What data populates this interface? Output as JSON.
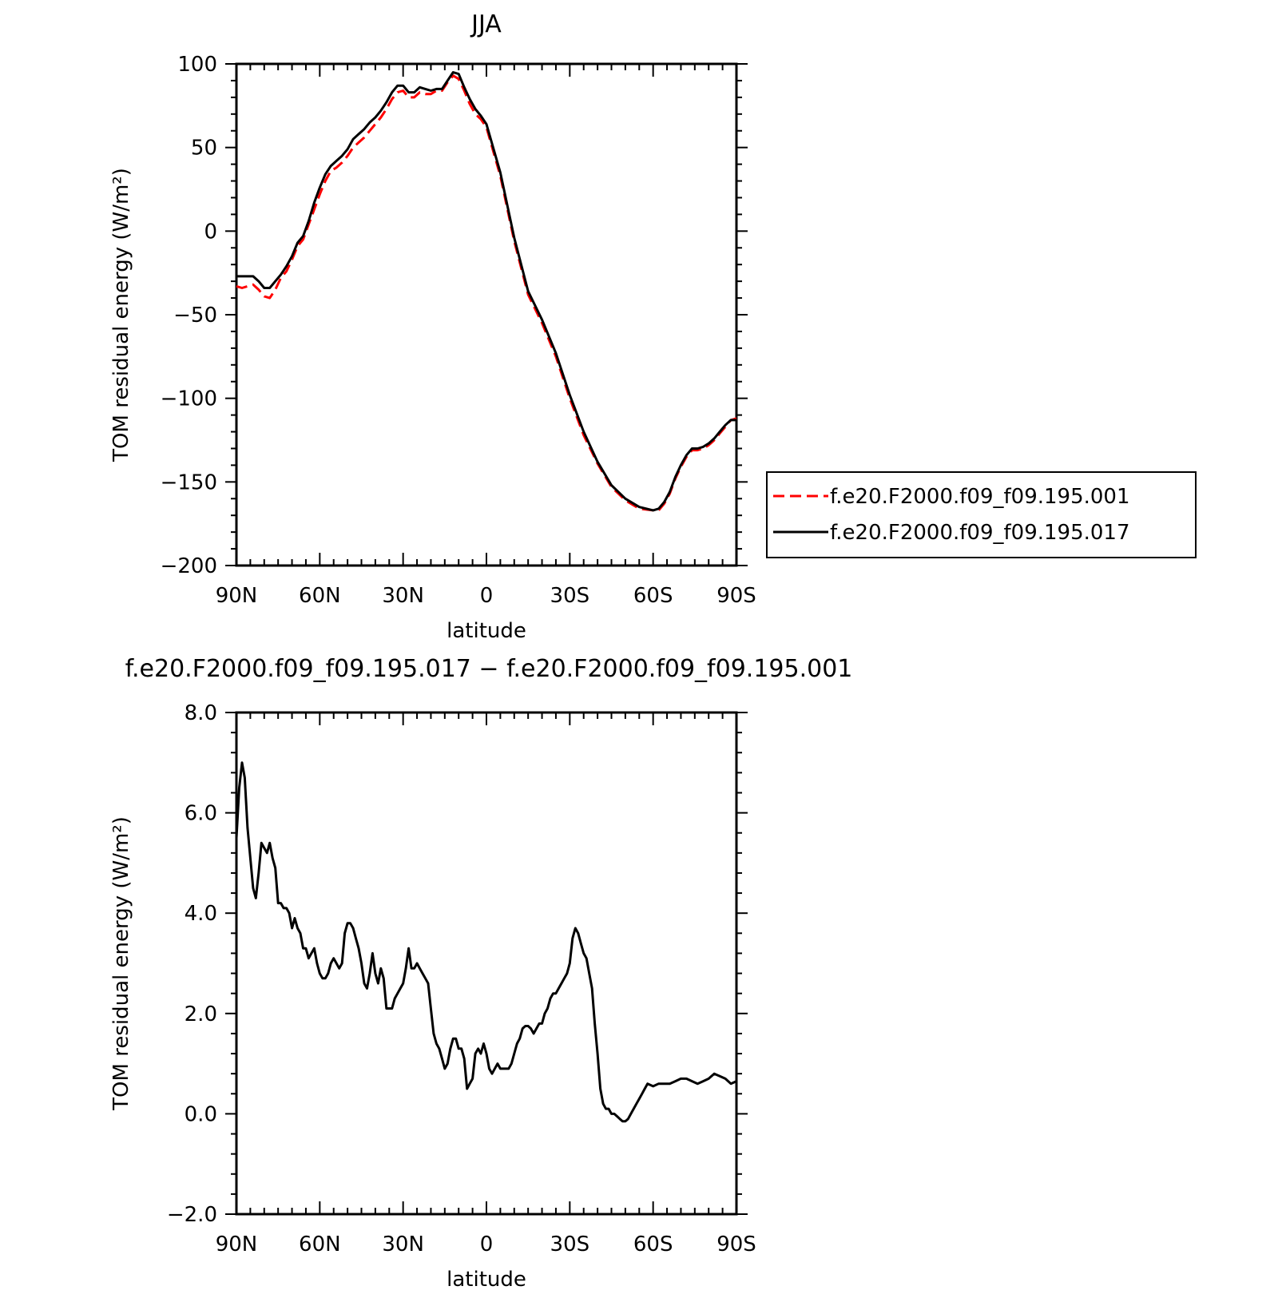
{
  "chart_data": [
    {
      "type": "line",
      "title": "JJA",
      "xlabel": "latitude",
      "ylabel": "TOM residual energy (W/m²)",
      "ylim": [
        -200,
        100
      ],
      "xlim": [
        90,
        -90
      ],
      "x_tick_values": [
        90,
        60,
        30,
        0,
        -30,
        -60,
        -90
      ],
      "x_tick_labels": [
        "90N",
        "60N",
        "30N",
        "0",
        "30S",
        "60S",
        "90S"
      ],
      "y_tick_values": [
        100,
        50,
        0,
        -50,
        -100,
        -150,
        -200
      ],
      "y_tick_labels": [
        "100",
        "50",
        "0",
        "−50",
        "−100",
        "−150",
        "−200"
      ],
      "legend_position": "right",
      "series": [
        {
          "name": "f.e20.F2000.f09_f09.195.001",
          "color": "#ff0000",
          "dash": "dashed",
          "x": [
            90,
            88,
            86,
            84,
            82,
            80,
            78,
            76,
            74,
            72,
            70,
            68,
            66,
            64,
            62,
            60,
            58,
            56,
            54,
            52,
            50,
            48,
            46,
            44,
            42,
            40,
            38,
            36,
            34,
            32,
            30,
            28,
            26,
            24,
            22,
            20,
            18,
            16,
            14,
            12,
            10,
            8,
            6,
            4,
            2,
            0,
            -5,
            -10,
            -15,
            -20,
            -25,
            -30,
            -35,
            -40,
            -45,
            -50,
            -55,
            -60,
            -62,
            -64,
            -66,
            -68,
            -70,
            -72,
            -74,
            -76,
            -78,
            -80,
            -82,
            -84,
            -86,
            -88,
            -90
          ],
          "y": [
            -33,
            -34,
            -33,
            -32,
            -35,
            -39,
            -40,
            -35,
            -28,
            -24,
            -17,
            -9,
            -5,
            4,
            13,
            22,
            30,
            36,
            38,
            41,
            45,
            50,
            53,
            56,
            60,
            64,
            68,
            73,
            79,
            83,
            84,
            80,
            80,
            83,
            82,
            82,
            84,
            84,
            89,
            93,
            91,
            84,
            76,
            70,
            67,
            62,
            33,
            -6,
            -38,
            -55,
            -75,
            -100,
            -122,
            -139,
            -153,
            -161,
            -166,
            -167,
            -167,
            -163,
            -157,
            -148,
            -141,
            -135,
            -131,
            -131,
            -130,
            -128,
            -125,
            -121,
            -117,
            -113,
            -112
          ]
        },
        {
          "name": "f.e20.F2000.f09_f09.195.017",
          "color": "#000000",
          "dash": "solid",
          "x": [
            90,
            88,
            86,
            84,
            82,
            80,
            78,
            76,
            74,
            72,
            70,
            68,
            66,
            64,
            62,
            60,
            58,
            56,
            54,
            52,
            50,
            48,
            46,
            44,
            42,
            40,
            38,
            36,
            34,
            32,
            30,
            28,
            26,
            24,
            22,
            20,
            18,
            16,
            14,
            12,
            10,
            8,
            6,
            4,
            2,
            0,
            -5,
            -10,
            -15,
            -20,
            -25,
            -30,
            -35,
            -40,
            -45,
            -50,
            -55,
            -60,
            -62,
            -64,
            -66,
            -68,
            -70,
            -72,
            -74,
            -76,
            -78,
            -80,
            -82,
            -84,
            -86,
            -88,
            -90
          ],
          "y": [
            -27,
            -27,
            -27,
            -27,
            -30,
            -34,
            -34,
            -30,
            -26,
            -21,
            -15,
            -7,
            -3,
            6,
            17,
            26,
            34,
            39,
            42,
            45,
            49,
            55,
            58,
            61,
            65,
            68,
            72,
            77,
            83,
            87,
            87,
            83,
            83,
            86,
            85,
            84,
            85,
            85,
            90,
            95,
            94,
            86,
            79,
            73,
            69,
            64,
            35,
            -4,
            -36,
            -53,
            -73,
            -98,
            -120,
            -138,
            -152,
            -160,
            -165,
            -167,
            -166,
            -162,
            -156,
            -147,
            -140,
            -134,
            -130,
            -130,
            -129,
            -127,
            -124,
            -120,
            -116,
            -113,
            -113
          ]
        }
      ]
    },
    {
      "type": "line",
      "title": "f.e20.F2000.f09_f09.195.017 − f.e20.F2000.f09_f09.195.001",
      "xlabel": "latitude",
      "ylabel": "TOM residual energy (W/m²)",
      "ylim": [
        -2.0,
        8.0
      ],
      "xlim": [
        90,
        -90
      ],
      "x_tick_values": [
        90,
        60,
        30,
        0,
        -30,
        -60,
        -90
      ],
      "x_tick_labels": [
        "90N",
        "60N",
        "30N",
        "0",
        "30S",
        "60S",
        "90S"
      ],
      "y_tick_values": [
        8,
        6,
        4,
        2,
        0,
        -2
      ],
      "y_tick_labels": [
        "8.0",
        "6.0",
        "4.0",
        "2.0",
        "0.0",
        "−2.0"
      ],
      "series": [
        {
          "color": "#000000",
          "dash": "solid",
          "x": [
            90,
            89,
            88,
            87,
            86,
            85,
            84,
            83,
            82,
            81,
            80,
            79,
            78,
            77,
            76,
            75,
            74,
            73,
            72,
            71,
            70,
            69,
            68,
            67,
            66,
            65,
            64,
            63,
            62,
            61,
            60,
            59,
            58,
            57,
            56,
            55,
            54,
            53,
            52,
            51,
            50,
            49,
            48,
            47,
            46,
            45,
            44,
            43,
            42,
            41,
            40,
            39,
            38,
            37,
            36,
            35,
            34,
            33,
            32,
            31,
            30,
            29,
            28,
            27,
            26,
            25,
            24,
            23,
            22,
            21,
            20,
            19,
            18,
            17,
            16,
            15,
            14,
            13,
            12,
            11,
            10,
            9,
            8,
            7,
            6,
            5,
            4,
            3,
            2,
            1,
            0,
            -1,
            -2,
            -3,
            -4,
            -5,
            -6,
            -7,
            -8,
            -9,
            -10,
            -11,
            -12,
            -13,
            -14,
            -15,
            -16,
            -17,
            -18,
            -19,
            -20,
            -21,
            -22,
            -23,
            -24,
            -25,
            -26,
            -27,
            -28,
            -29,
            -30,
            -31,
            -32,
            -33,
            -34,
            -35,
            -36,
            -37,
            -38,
            -39,
            -40,
            -41,
            -42,
            -43,
            -44,
            -45,
            -46,
            -47,
            -48,
            -49,
            -50,
            -51,
            -52,
            -53,
            -54,
            -55,
            -56,
            -57,
            -58,
            -60,
            -62,
            -64,
            -66,
            -68,
            -70,
            -72,
            -74,
            -76,
            -78,
            -80,
            -82,
            -84,
            -86,
            -88,
            -90
          ],
          "y": [
            5.5,
            6.5,
            7.0,
            6.7,
            5.7,
            5.1,
            4.5,
            4.3,
            4.8,
            5.4,
            5.3,
            5.2,
            5.4,
            5.1,
            4.9,
            4.2,
            4.2,
            4.1,
            4.1,
            4.0,
            3.7,
            3.9,
            3.7,
            3.6,
            3.3,
            3.3,
            3.1,
            3.2,
            3.3,
            3.0,
            2.8,
            2.7,
            2.7,
            2.8,
            3.0,
            3.1,
            3.0,
            2.9,
            3.0,
            3.6,
            3.8,
            3.8,
            3.7,
            3.5,
            3.3,
            3.0,
            2.6,
            2.5,
            2.8,
            3.2,
            2.8,
            2.6,
            2.9,
            2.7,
            2.1,
            2.1,
            2.1,
            2.3,
            2.4,
            2.5,
            2.6,
            2.9,
            3.3,
            2.9,
            2.9,
            3.0,
            2.9,
            2.8,
            2.7,
            2.6,
            2.1,
            1.6,
            1.4,
            1.3,
            1.1,
            0.9,
            1.0,
            1.3,
            1.5,
            1.5,
            1.3,
            1.3,
            1.1,
            0.5,
            0.6,
            0.7,
            1.2,
            1.3,
            1.2,
            1.4,
            1.2,
            0.9,
            0.8,
            0.9,
            1.0,
            0.9,
            0.9,
            0.9,
            0.9,
            1.0,
            1.2,
            1.4,
            1.5,
            1.7,
            1.75,
            1.75,
            1.7,
            1.6,
            1.7,
            1.8,
            1.8,
            2.0,
            2.1,
            2.3,
            2.4,
            2.4,
            2.5,
            2.6,
            2.7,
            2.8,
            3.0,
            3.5,
            3.7,
            3.6,
            3.4,
            3.2,
            3.1,
            2.8,
            2.5,
            1.8,
            1.2,
            0.5,
            0.2,
            0.1,
            0.1,
            0.0,
            0.0,
            -0.05,
            -0.1,
            -0.15,
            -0.15,
            -0.1,
            0.0,
            0.1,
            0.2,
            0.3,
            0.4,
            0.5,
            0.6,
            0.55,
            0.6,
            0.6,
            0.6,
            0.65,
            0.7,
            0.7,
            0.65,
            0.6,
            0.65,
            0.7,
            0.8,
            0.75,
            0.7,
            0.6,
            0.65
          ]
        }
      ]
    }
  ]
}
